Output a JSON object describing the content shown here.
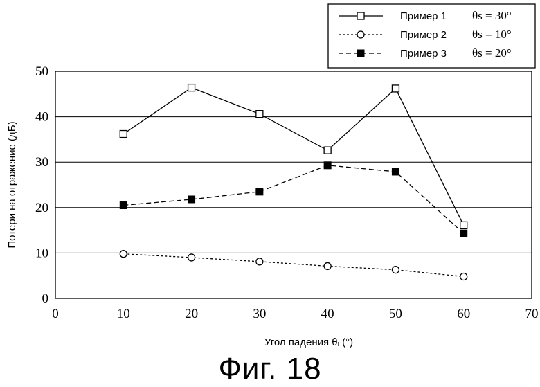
{
  "figure_caption": "Фиг. 18",
  "chart_data": {
    "type": "line",
    "xlabel": "Угол падения θᵢ (°)",
    "ylabel": "Потери на отражение (дБ)",
    "xlim": [
      0,
      70
    ],
    "ylim": [
      0,
      50
    ],
    "xticks": [
      0,
      10,
      20,
      30,
      40,
      50,
      60,
      70
    ],
    "yticks": [
      0,
      10,
      20,
      30,
      40,
      50
    ],
    "grid": "horizontal",
    "legend_position": "top-right",
    "series": [
      {
        "name": "Пример 1",
        "legend_param": "θs = 30°",
        "line_style": "solid",
        "marker": "open-square",
        "x": [
          10,
          20,
          30,
          40,
          50,
          60
        ],
        "y": [
          36.2,
          46.4,
          40.6,
          32.6,
          46.2,
          16.1
        ]
      },
      {
        "name": "Пример 2",
        "legend_param": "θs = 10°",
        "line_style": "dotted",
        "marker": "open-circle",
        "x": [
          10,
          20,
          30,
          40,
          50,
          60
        ],
        "y": [
          9.8,
          9.0,
          8.1,
          7.1,
          6.3,
          4.8
        ]
      },
      {
        "name": "Пример 3",
        "legend_param": "θs = 20°",
        "line_style": "dashed",
        "marker": "filled-square",
        "x": [
          10,
          20,
          30,
          40,
          50,
          60
        ],
        "y": [
          20.5,
          21.8,
          23.5,
          29.3,
          27.9,
          14.3
        ]
      }
    ]
  }
}
